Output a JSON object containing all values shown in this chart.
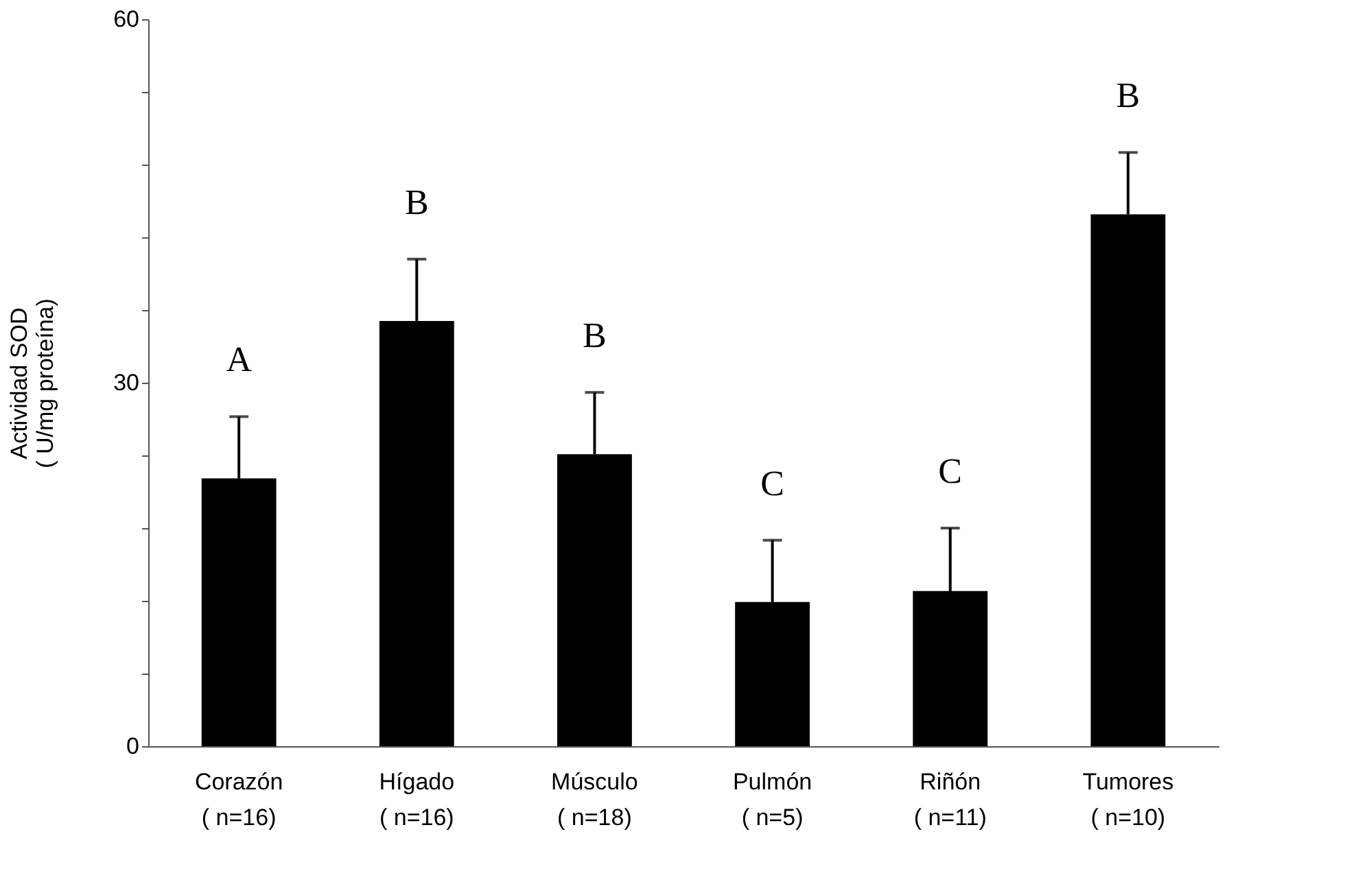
{
  "chart_data": {
    "type": "bar",
    "ylabel": "Actividad SOD\n( U/mg proteína)",
    "categories": [
      "Corazón\n( n=16)",
      "Hígado\n( n=16)",
      "Músculo\n( n=18)",
      "Pulmón\n( n=5)",
      "Riñón\n( n=11)",
      "Tumores\n( n=10)"
    ],
    "values": [
      22.1,
      35.1,
      24.1,
      11.9,
      12.8,
      43.9
    ],
    "errors": [
      [
        22.1,
        27.2
      ],
      [
        35.1,
        40.2
      ],
      [
        24.1,
        29.2
      ],
      [
        11.9,
        17.0
      ],
      [
        12.8,
        18.0
      ],
      [
        43.9,
        49.0
      ]
    ],
    "color": "#000000",
    "ylim": [
      0,
      60
    ],
    "yticks": [
      0,
      {
        "value": 6,
        "label": null
      },
      {
        "value": 12,
        "label": null
      },
      {
        "value": 18,
        "label": null
      },
      {
        "value": 24,
        "label": null
      },
      30,
      {
        "value": 36,
        "label": null
      },
      {
        "value": 42,
        "label": null
      },
      {
        "value": 48,
        "label": null
      },
      {
        "value": 54,
        "label": null
      },
      60
    ],
    "grid": false,
    "annotations": [
      "A",
      "B",
      "B",
      "C",
      "C",
      "B"
    ]
  }
}
